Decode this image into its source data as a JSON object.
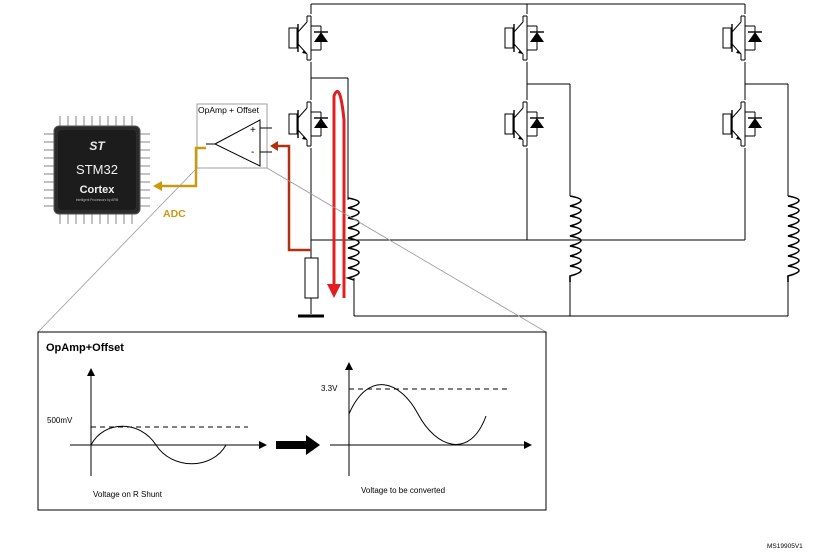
{
  "opamp_block": {
    "title": "OpAmp + Offset",
    "plus": "+",
    "minus": "-"
  },
  "mcu": {
    "brand": "STM32",
    "core": "Cortex",
    "vendor_tagline": "Intelligent Processors by ARM",
    "logo": "ST"
  },
  "adc_label": "ADC",
  "inset": {
    "title": "OpAmp+Offset",
    "left_graph": {
      "level_label": "500mV",
      "caption": "Voltage on R Shunt"
    },
    "right_graph": {
      "level_label": "3.3V",
      "caption": "Voltage to be converted"
    }
  },
  "doc_id": "MS19905V1",
  "colors": {
    "current_path": "#e02020",
    "feedback_wire": "#b03010",
    "adc_wire": "#c89a10",
    "line": "#000000"
  }
}
